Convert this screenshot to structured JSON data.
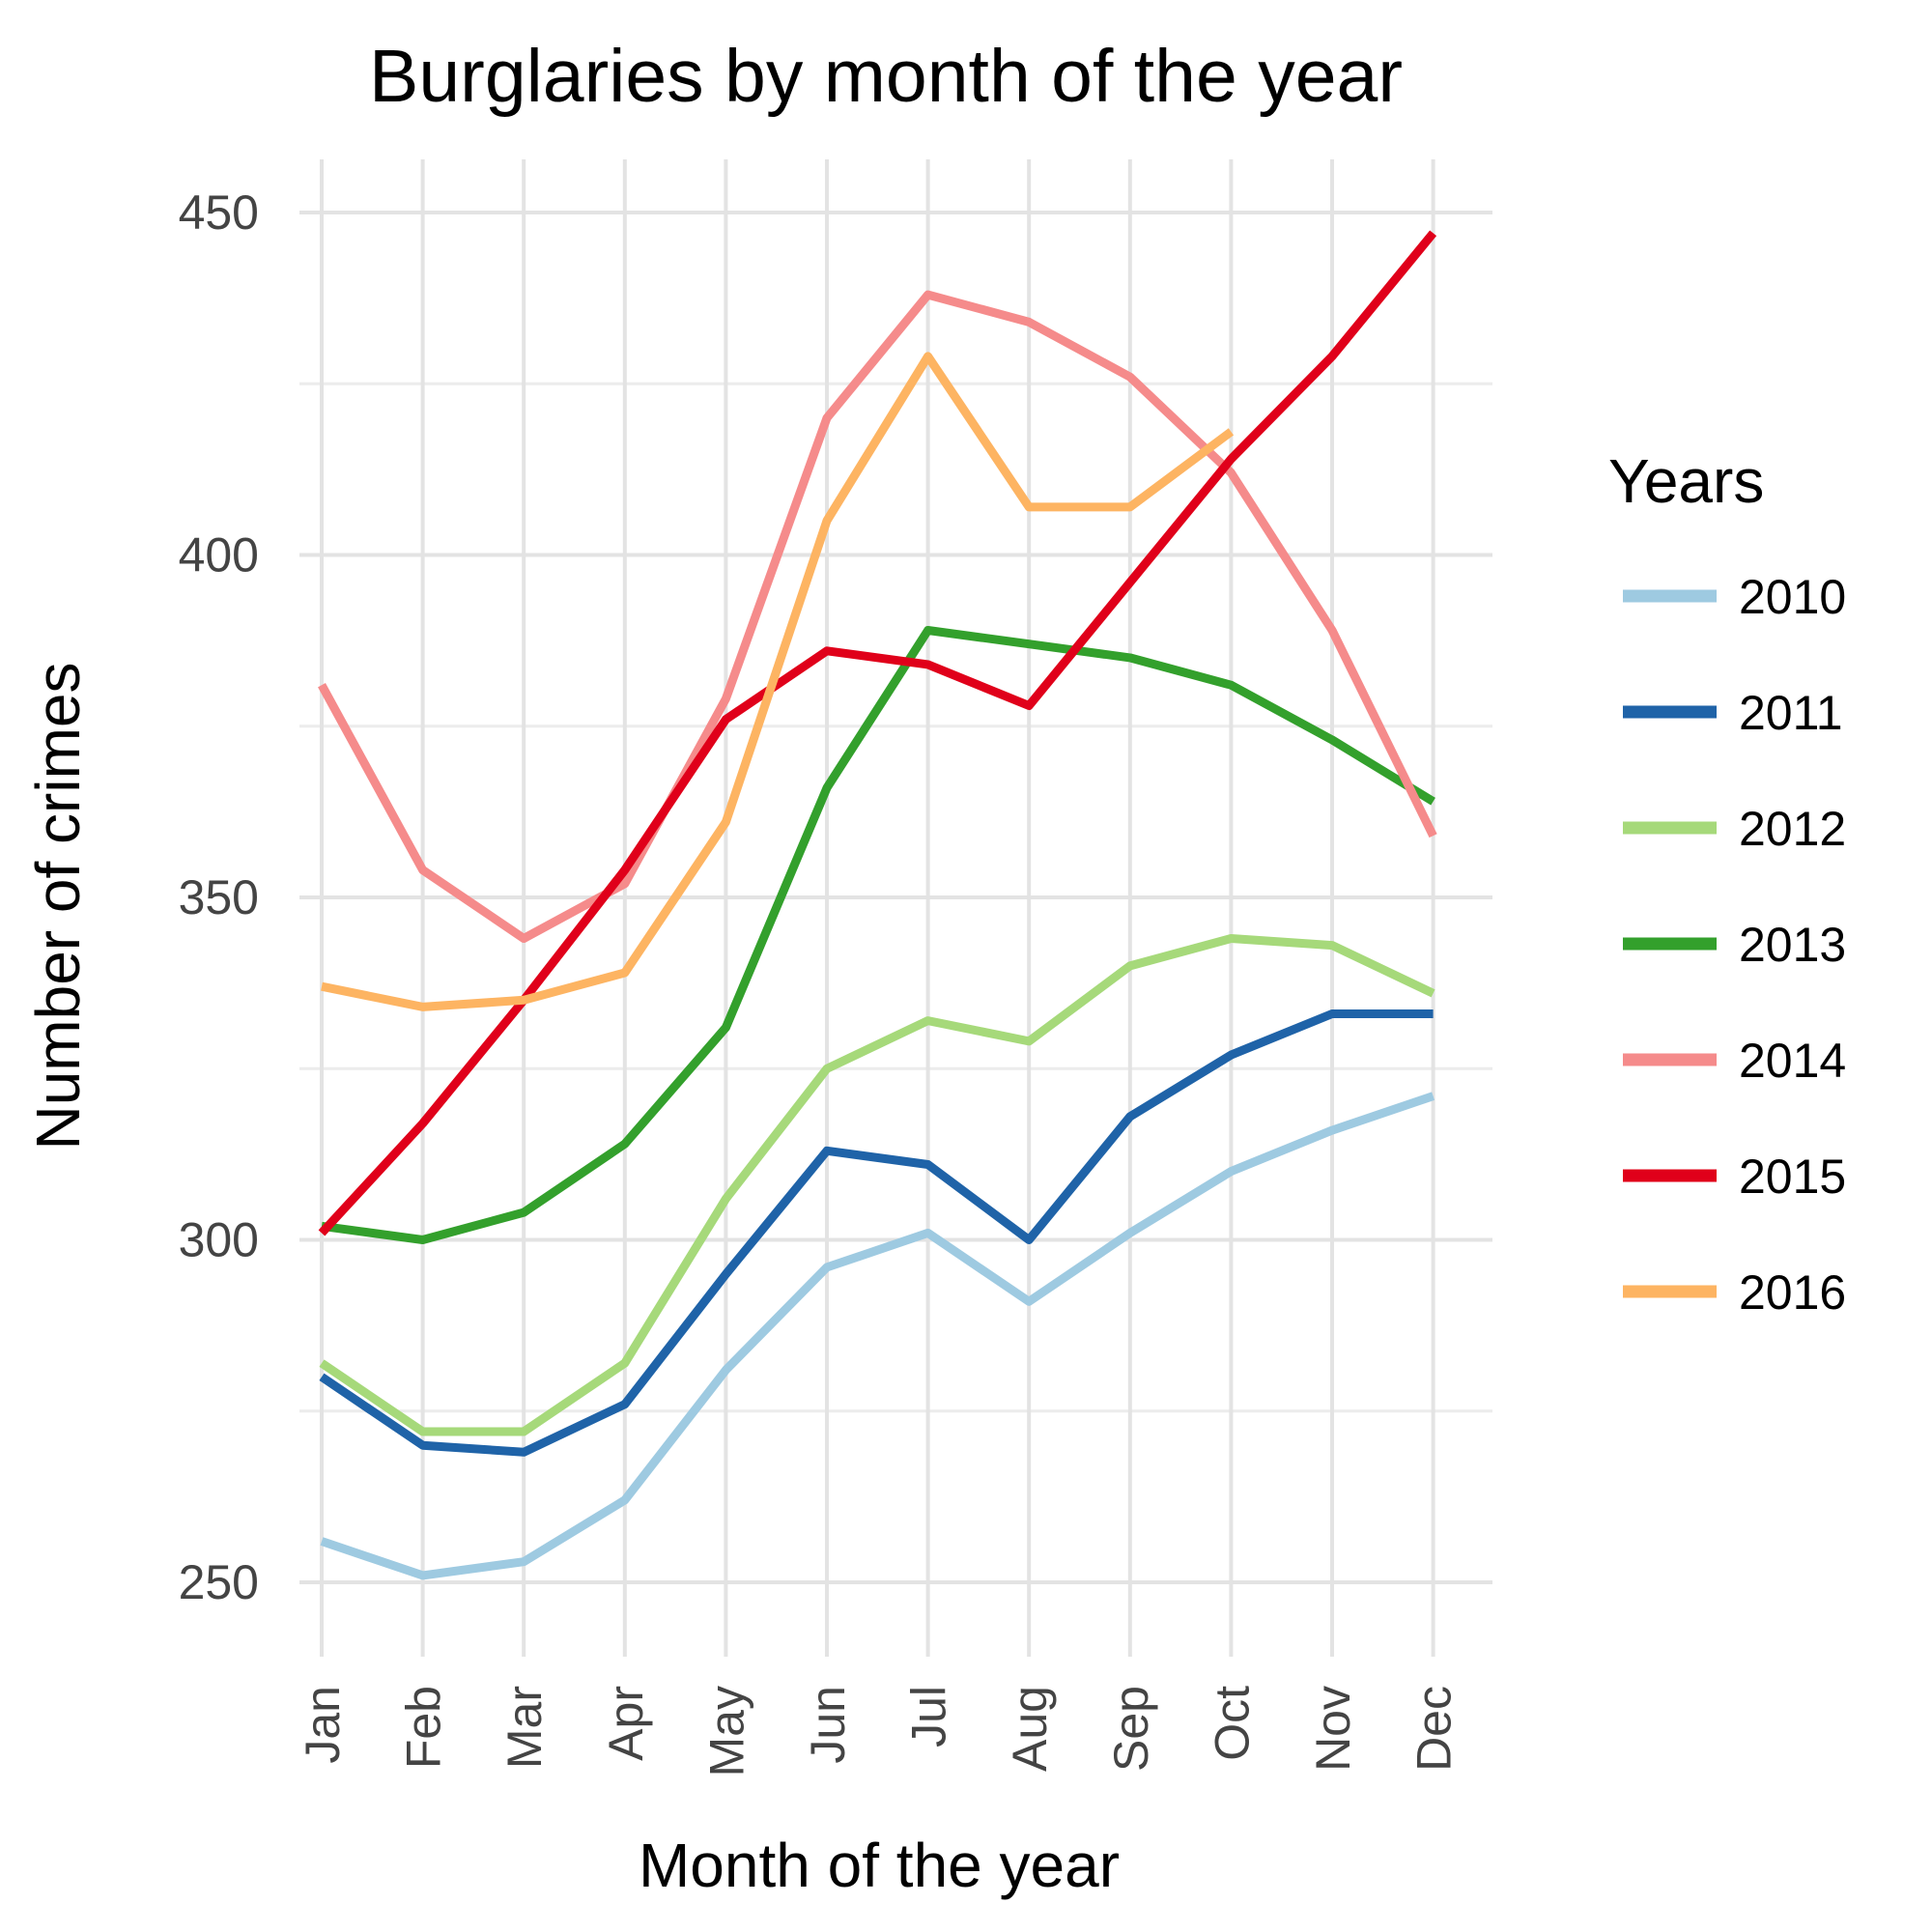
{
  "chart_data": {
    "type": "line",
    "title": "Burglaries by month of the year",
    "xlabel": "Month of the year",
    "ylabel": "Number of crimes",
    "categories": [
      "Jan",
      "Feb",
      "Mar",
      "Apr",
      "May",
      "Jun",
      "Jul",
      "Aug",
      "Sep",
      "Oct",
      "Nov",
      "Dec"
    ],
    "yticks": [
      250,
      300,
      350,
      400,
      450
    ],
    "ylim": [
      243,
      457
    ],
    "grid": true,
    "legend": {
      "title": "Years",
      "position": "right"
    },
    "series": [
      {
        "name": "2010",
        "color": "#9ecae1",
        "values": [
          256,
          251,
          253,
          262,
          281,
          296,
          301,
          291,
          301,
          310,
          316,
          321
        ]
      },
      {
        "name": "2011",
        "color": "#1f63a8",
        "values": [
          280,
          270,
          269,
          276,
          295,
          313,
          311,
          300,
          318,
          327,
          333,
          333
        ]
      },
      {
        "name": "2012",
        "color": "#a6d97a",
        "values": [
          282,
          272,
          272,
          282,
          306,
          325,
          332,
          329,
          340,
          344,
          343,
          336
        ]
      },
      {
        "name": "2013",
        "color": "#33a02c",
        "values": [
          302,
          300,
          304,
          314,
          331,
          366,
          389,
          387,
          385,
          381,
          373,
          364
        ]
      },
      {
        "name": "2014",
        "color": "#f58b8b",
        "values": [
          381,
          354,
          344,
          352,
          379,
          420,
          438,
          434,
          426,
          412,
          389,
          359
        ]
      },
      {
        "name": "2015",
        "color": "#e0001a",
        "values": [
          301,
          317,
          335,
          354,
          376,
          386,
          384,
          378,
          396,
          414,
          429,
          447
        ]
      },
      {
        "name": "2016",
        "color": "#fdb462",
        "values": [
          337,
          334,
          335,
          339,
          361,
          405,
          429,
          407,
          407,
          418,
          null,
          null
        ]
      }
    ]
  }
}
